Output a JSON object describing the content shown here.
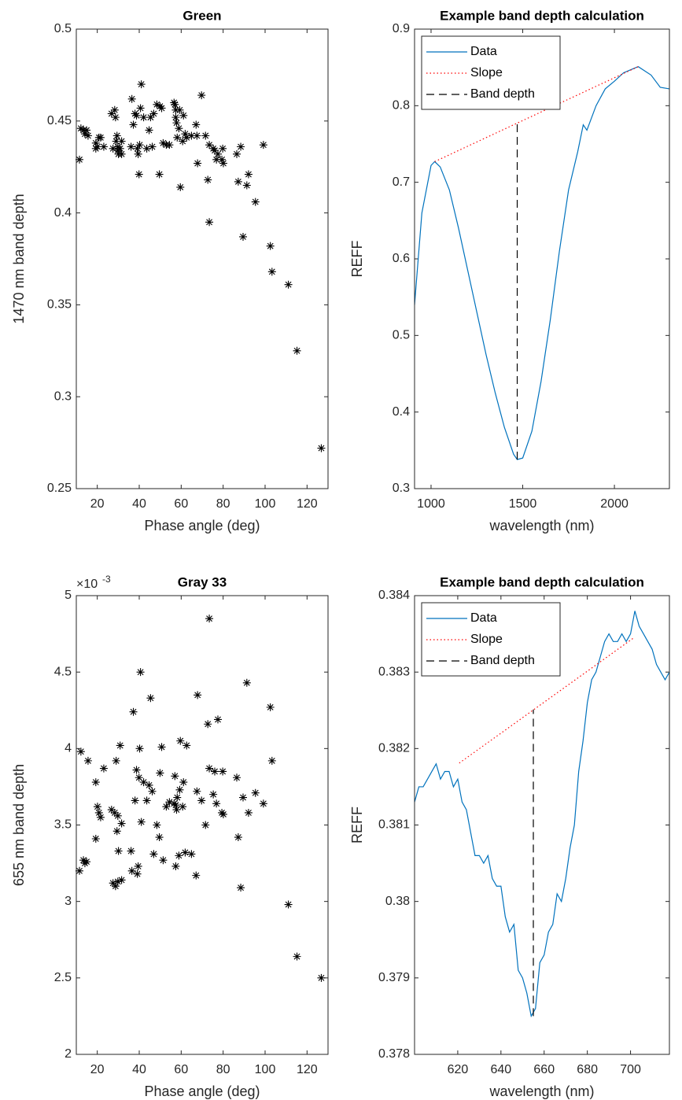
{
  "chart_data": [
    {
      "type": "scatter",
      "title": "Green",
      "x_label": "Phase angle (deg)",
      "y_label": "1470 nm band depth",
      "xlim": [
        10,
        130
      ],
      "ylim": [
        0.25,
        0.5
      ],
      "xticks": [
        20,
        40,
        60,
        80,
        100,
        120
      ],
      "yticks": [
        0.25,
        0.3,
        0.35,
        0.4,
        0.45,
        0.5
      ],
      "series": [
        {
          "color": "#000000",
          "marker": "asterisk",
          "x": [
            11.5,
            12.2,
            13.4,
            14.1,
            14.9,
            15.6,
            19.3,
            19.3,
            20.1,
            20.8,
            21.6,
            23.1,
            26.8,
            27.5,
            28.3,
            28.7,
            29.0,
            29.4,
            29.8,
            29.8,
            30.1,
            30.9,
            31.6,
            31.6,
            36.1,
            36.5,
            37.2,
            38.0,
            38.7,
            39.1,
            39.5,
            39.9,
            40.2,
            40.6,
            41.0,
            42.1,
            43.6,
            44.7,
            45.4,
            46.2,
            46.9,
            48.4,
            49.6,
            49.9,
            50.7,
            51.4,
            52.9,
            54.4,
            56.6,
            57.0,
            57.4,
            57.4,
            57.8,
            58.1,
            58.9,
            59.3,
            59.6,
            60.7,
            61.1,
            61.9,
            62.6,
            64.9,
            67.1,
            67.5,
            67.8,
            69.7,
            71.6,
            72.7,
            73.4,
            73.4,
            75.3,
            76.0,
            76.8,
            77.5,
            79.4,
            79.8,
            80.1,
            86.5,
            87.2,
            88.4,
            89.5,
            91.3,
            92.1,
            95.4,
            99.2,
            102.5,
            103.3,
            111.1,
            115.2,
            126.8
          ],
          "values": [
            0.429,
            0.446,
            0.445,
            0.443,
            0.445,
            0.442,
            0.438,
            0.435,
            0.436,
            0.441,
            0.441,
            0.436,
            0.454,
            0.435,
            0.456,
            0.452,
            0.439,
            0.442,
            0.436,
            0.434,
            0.432,
            0.435,
            0.439,
            0.432,
            0.436,
            0.462,
            0.448,
            0.454,
            0.453,
            0.435,
            0.432,
            0.421,
            0.437,
            0.457,
            0.47,
            0.452,
            0.435,
            0.445,
            0.452,
            0.436,
            0.454,
            0.459,
            0.421,
            0.458,
            0.457,
            0.438,
            0.437,
            0.437,
            0.46,
            0.459,
            0.456,
            0.452,
            0.449,
            0.441,
            0.446,
            0.456,
            0.414,
            0.439,
            0.453,
            0.443,
            0.441,
            0.442,
            0.448,
            0.442,
            0.427,
            0.464,
            0.442,
            0.418,
            0.395,
            0.437,
            0.435,
            0.434,
            0.429,
            0.432,
            0.429,
            0.435,
            0.427,
            0.432,
            0.417,
            0.436,
            0.387,
            0.415,
            0.421,
            0.406,
            0.437,
            0.382,
            0.368,
            0.361,
            0.325,
            0.272
          ]
        }
      ]
    },
    {
      "type": "line",
      "title": "Example band depth calculation",
      "x_label": "wavelength (nm)",
      "y_label": "REFF",
      "xlim": [
        910,
        2300
      ],
      "ylim": [
        0.3,
        0.9
      ],
      "xticks": [
        1000,
        1500,
        2000
      ],
      "yticks": [
        0.3,
        0.4,
        0.5,
        0.6,
        0.7,
        0.8,
        0.9
      ],
      "legend": "northwest",
      "series": [
        {
          "name": "Data",
          "color": "#0072bd",
          "line_style": "solid",
          "x": [
            910,
            950,
            1000,
            1020,
            1050,
            1100,
            1150,
            1200,
            1250,
            1300,
            1350,
            1400,
            1450,
            1470,
            1500,
            1550,
            1600,
            1650,
            1700,
            1750,
            1800,
            1830,
            1850,
            1900,
            1950,
            2000,
            2050,
            2100,
            2130,
            2200,
            2250,
            2300
          ],
          "values": [
            0.54,
            0.66,
            0.722,
            0.727,
            0.72,
            0.69,
            0.64,
            0.585,
            0.53,
            0.475,
            0.425,
            0.38,
            0.345,
            0.338,
            0.34,
            0.375,
            0.44,
            0.52,
            0.61,
            0.69,
            0.74,
            0.775,
            0.768,
            0.8,
            0.822,
            0.832,
            0.843,
            0.848,
            0.851,
            0.84,
            0.824,
            0.822
          ]
        },
        {
          "name": "Slope",
          "color": "#ff0000",
          "line_style": "dotted",
          "x": [
            1020,
            2130
          ],
          "values": [
            0.727,
            0.851
          ]
        },
        {
          "name": "Band depth",
          "color": "#000000",
          "line_style": "dashed",
          "x": [
            1470,
            1470
          ],
          "values": [
            0.338,
            0.777
          ]
        }
      ]
    },
    {
      "type": "scatter",
      "title": "Gray 33",
      "x_label": "Phase angle (deg)",
      "y_label": "655 nm band depth",
      "y_multiplier": {
        "base": "×10",
        "exponent": "-3"
      },
      "xlim": [
        10,
        130
      ],
      "ylim": [
        2,
        5
      ],
      "xticks": [
        20,
        40,
        60,
        80,
        100,
        120
      ],
      "yticks": [
        2,
        2.5,
        3,
        3.5,
        4,
        4.5,
        5
      ],
      "series": [
        {
          "color": "#000000",
          "marker": "asterisk",
          "x": [
            11.5,
            12.2,
            13.4,
            14.1,
            14.9,
            15.6,
            19.3,
            19.3,
            20.1,
            20.8,
            21.6,
            23.1,
            26.8,
            27.5,
            28.3,
            28.7,
            29.0,
            29.4,
            29.8,
            29.8,
            30.1,
            30.9,
            31.6,
            31.6,
            36.1,
            36.5,
            37.2,
            38.0,
            38.7,
            39.1,
            39.5,
            39.9,
            40.2,
            40.6,
            41.0,
            42.1,
            43.6,
            44.7,
            45.4,
            46.2,
            46.9,
            48.4,
            49.6,
            49.9,
            50.7,
            51.4,
            52.9,
            54.4,
            56.6,
            57.0,
            57.4,
            57.4,
            57.8,
            58.1,
            58.9,
            59.3,
            59.6,
            60.7,
            61.1,
            61.9,
            62.6,
            64.9,
            67.1,
            67.5,
            67.8,
            69.7,
            71.6,
            72.7,
            73.4,
            73.4,
            75.3,
            76.0,
            76.8,
            77.5,
            79.4,
            79.8,
            80.1,
            86.5,
            87.2,
            88.4,
            89.5,
            91.3,
            92.1,
            95.4,
            99.2,
            102.5,
            103.3,
            111.1,
            115.2,
            126.8
          ],
          "values": [
            3.2,
            3.98,
            3.27,
            3.25,
            3.26,
            3.92,
            3.78,
            3.41,
            3.62,
            3.58,
            3.55,
            3.87,
            3.6,
            3.12,
            3.58,
            3.1,
            3.92,
            3.46,
            3.56,
            3.13,
            3.33,
            4.02,
            3.51,
            3.14,
            3.33,
            3.2,
            4.24,
            3.66,
            3.86,
            3.18,
            3.23,
            3.81,
            4.0,
            4.5,
            3.52,
            3.78,
            3.66,
            3.76,
            4.33,
            3.72,
            3.31,
            3.5,
            3.42,
            3.84,
            4.01,
            3.27,
            3.62,
            3.65,
            3.64,
            3.82,
            3.63,
            3.23,
            3.6,
            3.68,
            3.3,
            3.73,
            4.05,
            3.62,
            3.78,
            3.32,
            4.02,
            3.31,
            3.17,
            3.72,
            4.35,
            3.66,
            3.5,
            4.16,
            3.87,
            4.85,
            3.7,
            3.85,
            3.64,
            4.19,
            3.58,
            3.85,
            3.57,
            3.81,
            3.42,
            3.09,
            3.68,
            4.43,
            3.58,
            3.71,
            3.64,
            4.27,
            3.92,
            2.98,
            2.64,
            2.5
          ]
        }
      ]
    },
    {
      "type": "line",
      "title": "Example band depth calculation",
      "x_label": "wavelength (nm)",
      "y_label": "REFF",
      "xlim": [
        600,
        718
      ],
      "ylim": [
        0.378,
        0.384
      ],
      "xticks": [
        620,
        640,
        660,
        680,
        700
      ],
      "yticks": [
        0.378,
        0.379,
        0.38,
        0.381,
        0.382,
        0.383,
        0.384
      ],
      "legend": "northwest",
      "series": [
        {
          "name": "Data",
          "color": "#0072bd",
          "line_style": "solid",
          "x": [
            600,
            602,
            604,
            606,
            608,
            610,
            612,
            614,
            616,
            618,
            620,
            622,
            624,
            626,
            628,
            630,
            632,
            634,
            636,
            638,
            640,
            642,
            644,
            646,
            648,
            650,
            652,
            654,
            656,
            658,
            660,
            662,
            664,
            666,
            668,
            670,
            672,
            674,
            676,
            678,
            680,
            682,
            684,
            686,
            688,
            690,
            692,
            694,
            696,
            698,
            700,
            702,
            704,
            706,
            708,
            710,
            712,
            714,
            716,
            718
          ],
          "values": [
            0.3813,
            0.3815,
            0.3815,
            0.3816,
            0.3817,
            0.3818,
            0.3816,
            0.3817,
            0.3817,
            0.3815,
            0.3816,
            0.3813,
            0.3812,
            0.3809,
            0.3806,
            0.3806,
            0.3805,
            0.3806,
            0.3803,
            0.3802,
            0.3802,
            0.3798,
            0.3796,
            0.3797,
            0.3791,
            0.379,
            0.3788,
            0.3785,
            0.3786,
            0.3792,
            0.3793,
            0.3796,
            0.3797,
            0.3801,
            0.38,
            0.3803,
            0.3807,
            0.381,
            0.3817,
            0.3821,
            0.3826,
            0.3829,
            0.383,
            0.3832,
            0.3834,
            0.3835,
            0.3834,
            0.3834,
            0.3835,
            0.3834,
            0.3835,
            0.3838,
            0.3836,
            0.3835,
            0.3834,
            0.3833,
            0.3831,
            0.383,
            0.3829,
            0.383
          ]
        },
        {
          "name": "Slope",
          "color": "#ff0000",
          "line_style": "dotted",
          "x": [
            620.7,
            701.6
          ],
          "values": [
            0.38181,
            0.38345
          ]
        },
        {
          "name": "Band depth",
          "color": "#000000",
          "line_style": "dashed",
          "x": [
            655,
            655
          ],
          "values": [
            0.3785,
            0.38251
          ]
        }
      ]
    }
  ]
}
